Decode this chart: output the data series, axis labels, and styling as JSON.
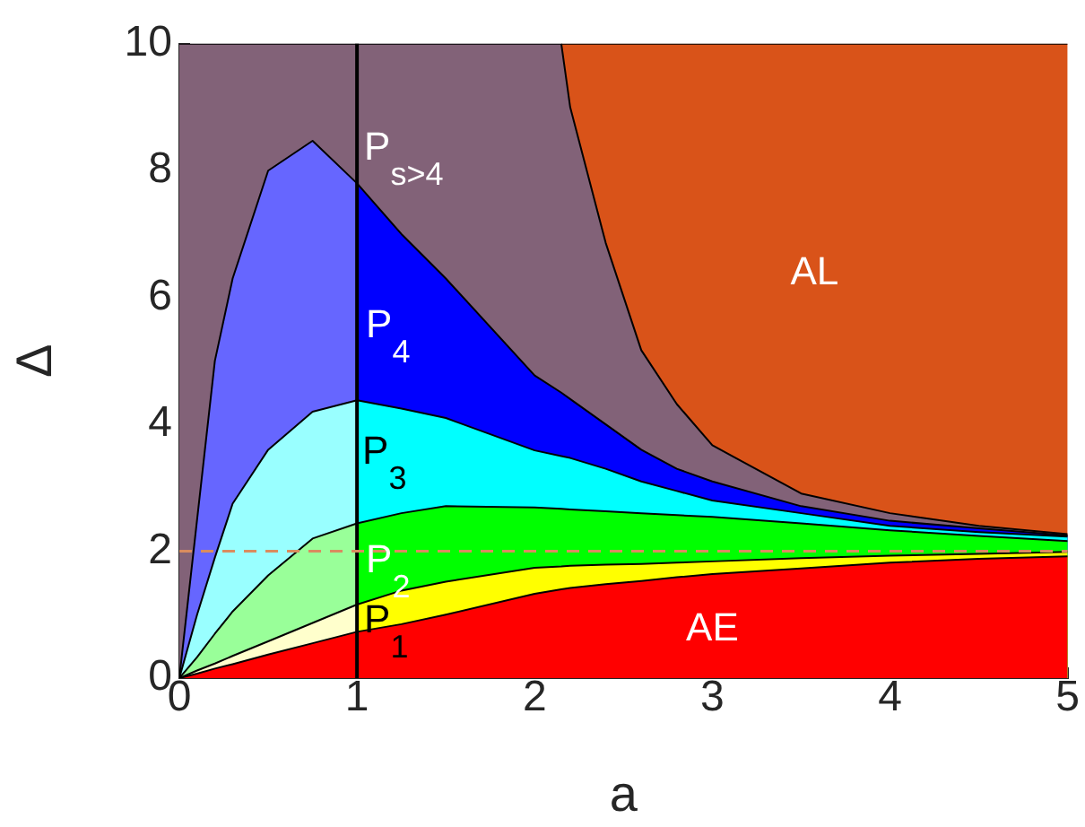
{
  "chart_data": {
    "type": "area",
    "xlabel": "a",
    "ylabel": "Δ",
    "xlim": [
      0,
      5
    ],
    "xticks": [
      0,
      1,
      2,
      3,
      4,
      5
    ],
    "ylim": [
      0,
      10
    ],
    "yticks": [
      0,
      2,
      4,
      6,
      8,
      10
    ],
    "legend": false,
    "series": [
      {
        "color": "#ff0000",
        "x": [
          0,
          0.1,
          0.2,
          0.3,
          0.5,
          0.75,
          1
        ],
        "values": [
          0,
          0.07,
          0.15,
          0.22,
          0.37,
          0.55,
          0.73
        ]
      },
      {
        "color": "#ffffcc",
        "x": [
          0,
          0.1,
          0.2,
          0.3,
          0.5,
          0.75,
          1
        ],
        "values": [
          0,
          0.12,
          0.23,
          0.35,
          0.58,
          0.87,
          1.16
        ]
      },
      {
        "color": "#99ff99",
        "x": [
          0,
          0.1,
          0.2,
          0.3,
          0.5,
          0.75,
          1
        ],
        "values": [
          0,
          0.33,
          0.7,
          1.05,
          1.62,
          2.2,
          2.44
        ]
      },
      {
        "color": "#99ffff",
        "x": [
          0,
          0.1,
          0.2,
          0.3,
          0.5,
          0.75,
          1
        ],
        "values": [
          0,
          1.0,
          1.9,
          2.75,
          3.6,
          4.2,
          4.38
        ]
      },
      {
        "color": "#6666ff",
        "x": [
          0,
          0.1,
          0.2,
          0.3,
          0.5,
          0.75,
          1
        ],
        "values": [
          0,
          2.5,
          5.0,
          6.3,
          8.0,
          8.47,
          7.8
        ]
      },
      {
        "color": "#826278",
        "x": [
          0,
          1
        ],
        "values": [
          10,
          10
        ]
      },
      {
        "name": "AE",
        "color": "#ff0000",
        "x": [
          1,
          1.25,
          1.5,
          2,
          2.15,
          2.2,
          2.4,
          2.6,
          2.8,
          3,
          3.5,
          4,
          4.5,
          5
        ],
        "values": [
          0.73,
          0.85,
          1.0,
          1.33,
          1.4,
          1.42,
          1.48,
          1.53,
          1.59,
          1.64,
          1.73,
          1.82,
          1.88,
          1.92
        ]
      },
      {
        "color": "#ffff00",
        "x": [
          1,
          1.25,
          1.5,
          2,
          2.15,
          2.2,
          2.4,
          2.6,
          2.8,
          3,
          3.5,
          4,
          4.5,
          5
        ],
        "values": [
          1.16,
          1.38,
          1.52,
          1.74,
          1.76,
          1.77,
          1.79,
          1.8,
          1.82,
          1.84,
          1.89,
          1.93,
          1.96,
          1.99
        ]
      },
      {
        "color": "#00ff00",
        "x": [
          1,
          1.25,
          1.5,
          2,
          2.15,
          2.2,
          2.4,
          2.6,
          2.8,
          3,
          3.5,
          4,
          4.5,
          5
        ],
        "values": [
          2.44,
          2.6,
          2.71,
          2.69,
          2.67,
          2.66,
          2.63,
          2.6,
          2.57,
          2.54,
          2.44,
          2.33,
          2.24,
          2.16
        ]
      },
      {
        "color": "#00ffff",
        "x": [
          1,
          1.25,
          1.5,
          2,
          2.15,
          2.2,
          2.4,
          2.6,
          2.8,
          3,
          3.5,
          4,
          4.5,
          5
        ],
        "values": [
          4.38,
          4.25,
          4.1,
          3.59,
          3.5,
          3.47,
          3.3,
          3.1,
          2.95,
          2.8,
          2.6,
          2.4,
          2.3,
          2.23
        ]
      },
      {
        "color": "#0000ff",
        "x": [
          1,
          1.25,
          1.5,
          2,
          2.15,
          2.2,
          2.4,
          2.6,
          2.8,
          3,
          3.5,
          4,
          4.5,
          5
        ],
        "values": [
          7.8,
          7.0,
          6.3,
          4.77,
          4.5,
          4.4,
          4.0,
          3.6,
          3.3,
          3.1,
          2.71,
          2.48,
          2.36,
          2.25
        ]
      },
      {
        "color": "#826278",
        "x": [
          1,
          1.25,
          1.5,
          2,
          2.15,
          2.2,
          2.4,
          2.6,
          2.8,
          3,
          3.5,
          4,
          4.5,
          5
        ],
        "values": [
          10,
          10,
          10,
          10,
          10,
          9.0,
          6.86,
          5.17,
          4.32,
          3.67,
          2.91,
          2.6,
          2.4,
          2.27
        ]
      },
      {
        "name": "AL",
        "color": "#d95319",
        "x": [
          2.15,
          5
        ],
        "values": [
          10,
          10
        ]
      }
    ],
    "ref_lines": [
      {
        "axis": "x",
        "value": 1,
        "color": "#000000",
        "line_style": "solid"
      },
      {
        "axis": "y",
        "value": 2,
        "color": "#d98c5f",
        "line_style": "dashed"
      }
    ],
    "annotations": [
      {
        "text": "P$_{s>4}$",
        "x": 1.04,
        "y": 8.4
      },
      {
        "text": "P$_{4}$",
        "x": 1.05,
        "y": 5.6
      },
      {
        "text": "P$_{3}$",
        "x": 1.03,
        "y": 3.6
      },
      {
        "text": "P$_{2}$",
        "x": 1.05,
        "y": 1.9
      },
      {
        "text": "P$_{1}$",
        "x": 1.04,
        "y": 0.95
      }
    ]
  }
}
